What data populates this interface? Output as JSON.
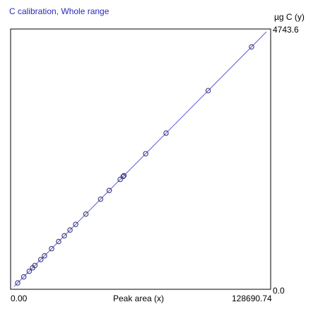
{
  "chart_data": {
    "type": "scatter",
    "title": "C calibration, Whole range",
    "xlabel": "Peak area (x)",
    "ylabel": "µg C (y)",
    "xlim": [
      0.0,
      128690.74
    ],
    "ylim": [
      0.0,
      4743.6
    ],
    "x_min_label": "0.00",
    "x_max_label": "128690.74",
    "y_min_label": "0.0",
    "y_max_label": "4743.6",
    "grid": false,
    "legend": "none",
    "colors": {
      "line": "#5a5ad0",
      "marker": "#3a3a80",
      "title": "#2a2ab8",
      "frame": "#000000"
    },
    "fit_line": {
      "x": [
        0,
        128690.74
      ],
      "y": [
        0,
        4743.6
      ]
    },
    "points": [
      {
        "x": 1800,
        "y": 66
      },
      {
        "x": 4900,
        "y": 180
      },
      {
        "x": 7700,
        "y": 284
      },
      {
        "x": 9400,
        "y": 347
      },
      {
        "x": 10600,
        "y": 391
      },
      {
        "x": 13600,
        "y": 501
      },
      {
        "x": 15500,
        "y": 571
      },
      {
        "x": 19100,
        "y": 704
      },
      {
        "x": 22700,
        "y": 837
      },
      {
        "x": 25600,
        "y": 944
      },
      {
        "x": 28500,
        "y": 1051
      },
      {
        "x": 31400,
        "y": 1157
      },
      {
        "x": 36600,
        "y": 1349
      },
      {
        "x": 44100,
        "y": 1626
      },
      {
        "x": 48500,
        "y": 1788
      },
      {
        "x": 54100,
        "y": 1994
      },
      {
        "x": 55600,
        "y": 2049
      },
      {
        "x": 56000,
        "y": 2064
      },
      {
        "x": 67100,
        "y": 2473
      },
      {
        "x": 77500,
        "y": 2857
      },
      {
        "x": 99000,
        "y": 3649
      },
      {
        "x": 121100,
        "y": 4464
      }
    ]
  }
}
